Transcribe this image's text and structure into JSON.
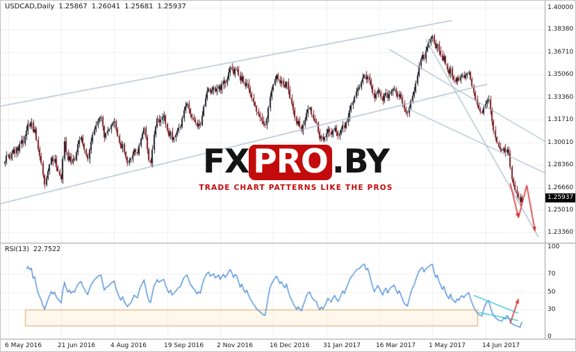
{
  "header": {
    "symbol": "USDCAD,Daily",
    "open": "1.25867",
    "high": "1.26041",
    "low": "1.25681",
    "close": "1.25937"
  },
  "watermark": {
    "fx": "FX",
    "pro": "PRO",
    "dot_by": ".BY",
    "tagline": "TRADE CHART PATTERNS LIKE THE PROS",
    "brand_red": "#c40b0b"
  },
  "colors": {
    "background": "#ffffff",
    "grid": "#d2d2d2",
    "separator": "#9b9b9b",
    "bull_candle": "#1f1f2a",
    "bear_candle": "#7b1d22",
    "trendline": "#a4bac9",
    "rsi_line": "#3e86d8",
    "forecast_red": "#e03030",
    "wedge_cyan": "#2ac0d4",
    "box_border": "#e0a85c",
    "box_fill": "rgba(252,238,213,0.45)",
    "scale_text": "#1a1a1a",
    "price_tag_bg": "#000000",
    "price_tag_text": "#ffffff"
  },
  "chart_data": {
    "type": "candlestick",
    "title": "USDCAD Daily candlestick chart with RSI(13) indicator and trend channel annotations",
    "symbol": "USDCAD",
    "timeframe": "Daily",
    "last_ohlc": {
      "open": 1.25867,
      "high": 1.26041,
      "low": 1.25681,
      "close": 1.25937
    },
    "current_price_label": "1.25937",
    "y_axis": {
      "tick_labels": [
        "1.40000",
        "1.38380",
        "1.36710",
        "1.35060",
        "1.33360",
        "1.31710",
        "1.30010",
        "1.28360",
        "1.26660",
        "1.25010",
        "1.23360"
      ],
      "tick_values": [
        1.4,
        1.3838,
        1.3671,
        1.3506,
        1.3336,
        1.3171,
        1.3001,
        1.2836,
        1.2666,
        1.2501,
        1.2336
      ],
      "range": [
        1.2264,
        1.4052
      ]
    },
    "x_axis": {
      "tick_labels": [
        "6 May 2016",
        "21 Jun 2016",
        "4 Aug 2016",
        "19 Sep 2016",
        "2 Nov 2016",
        "16 Dec 2016",
        "31 Jan 2017",
        "16 Mar 2017",
        "1 May 2017",
        "14 Jun 2017"
      ],
      "tick_day_index": [
        2,
        34,
        66,
        98,
        130,
        162,
        194,
        226,
        258,
        290
      ]
    },
    "closes": [
      1.286,
      1.2905,
      1.291,
      1.288,
      1.2925,
      1.295,
      1.292,
      1.2965,
      1.294,
      1.299,
      1.302,
      1.2995,
      1.305,
      1.309,
      1.314,
      1.312,
      1.315,
      1.308,
      1.31,
      1.302,
      1.295,
      1.29,
      1.285,
      1.276,
      1.269,
      1.274,
      1.279,
      1.284,
      1.289,
      1.286,
      1.288,
      1.282,
      1.279,
      1.276,
      1.273,
      1.288,
      1.301,
      1.293,
      1.287,
      1.29,
      1.285,
      1.288,
      1.287,
      1.293,
      1.299,
      1.302,
      1.304,
      1.299,
      1.295,
      1.291,
      1.288,
      1.295,
      1.301,
      1.306,
      1.31,
      1.313,
      1.316,
      1.318,
      1.319,
      1.312,
      1.304,
      1.307,
      1.309,
      1.31,
      1.313,
      1.3145,
      1.316,
      1.31,
      1.305,
      1.3,
      1.296,
      1.299,
      1.293,
      1.289,
      1.285,
      1.287,
      1.288,
      1.291,
      1.295,
      1.293,
      1.292,
      1.298,
      1.303,
      1.307,
      1.311,
      1.304,
      1.295,
      1.287,
      1.285,
      1.295,
      1.306,
      1.312,
      1.318,
      1.315,
      1.317,
      1.319,
      1.32,
      1.314,
      1.309,
      1.305,
      1.308,
      1.302,
      1.304,
      1.306,
      1.309,
      1.311,
      1.312,
      1.318,
      1.324,
      1.327,
      1.329,
      1.325,
      1.321,
      1.319,
      1.317,
      1.315,
      1.312,
      1.314,
      1.313,
      1.32,
      1.327,
      1.333,
      1.338,
      1.34,
      1.337,
      1.339,
      1.341,
      1.338,
      1.34,
      1.342,
      1.339,
      1.343,
      1.346,
      1.344,
      1.347,
      1.352,
      1.356,
      1.354,
      1.351,
      1.355,
      1.354,
      1.35,
      1.346,
      1.349,
      1.345,
      1.342,
      1.344,
      1.34,
      1.336,
      1.333,
      1.33,
      1.327,
      1.323,
      1.321,
      1.319,
      1.316,
      1.314,
      1.313,
      1.318,
      1.326,
      1.334,
      1.339,
      1.343,
      1.347,
      1.35,
      1.347,
      1.344,
      1.346,
      1.343,
      1.341,
      1.345,
      1.339,
      1.333,
      1.329,
      1.324,
      1.319,
      1.314,
      1.316,
      1.312,
      1.309,
      1.313,
      1.317,
      1.322,
      1.325,
      1.326,
      1.321,
      1.318,
      1.316,
      1.315,
      1.308,
      1.303,
      1.305,
      1.302,
      1.304,
      1.307,
      1.31,
      1.308,
      1.306,
      1.309,
      1.311,
      1.308,
      1.305,
      1.307,
      1.31,
      1.313,
      1.311,
      1.315,
      1.319,
      1.324,
      1.328,
      1.33,
      1.334,
      1.338,
      1.34,
      1.341,
      1.345,
      1.348,
      1.35,
      1.347,
      1.349,
      1.346,
      1.342,
      1.337,
      1.333,
      1.336,
      1.339,
      1.337,
      1.334,
      1.331,
      1.335,
      1.337,
      1.333,
      1.336,
      1.338,
      1.339,
      1.34,
      1.337,
      1.334,
      1.336,
      1.333,
      1.329,
      1.325,
      1.323,
      1.322,
      1.326,
      1.331,
      1.335,
      1.338,
      1.344,
      1.35,
      1.357,
      1.362,
      1.365,
      1.362,
      1.368,
      1.371,
      1.374,
      1.377,
      1.379,
      1.374,
      1.37,
      1.373,
      1.368,
      1.365,
      1.361,
      1.364,
      1.358,
      1.354,
      1.351,
      1.355,
      1.349,
      1.347,
      1.345,
      1.348,
      1.346,
      1.349,
      1.35,
      1.348,
      1.35,
      1.351,
      1.352,
      1.347,
      1.342,
      1.337,
      1.332,
      1.328,
      1.325,
      1.323,
      1.322,
      1.326,
      1.329,
      1.331,
      1.332,
      1.324,
      1.316,
      1.309,
      1.304,
      1.3,
      1.297,
      1.295,
      1.294,
      1.296,
      1.293,
      1.295,
      1.292,
      1.282,
      1.273,
      1.269,
      1.265,
      1.262,
      1.26,
      1.256,
      1.2594
    ],
    "rsi": {
      "label": "RSI(13)",
      "value": "22.7522",
      "period": 13,
      "levels": [
        "100",
        "70",
        "50",
        "30",
        "0"
      ],
      "level_values": [
        100,
        70,
        50,
        30,
        0
      ],
      "dotted_levels": [
        70,
        50,
        30
      ],
      "ylim": [
        0,
        100
      ]
    },
    "annotations": {
      "trendlines": [
        {
          "from_day": -3,
          "from_price": 1.327,
          "to_day": 270,
          "to_price": 1.3905
        },
        {
          "from_day": -3,
          "from_price": 1.2548,
          "to_day": 291,
          "to_price": 1.3433
        },
        {
          "from_day": 254,
          "from_price": 1.3768,
          "to_day": 322,
          "to_price": 1.2301
        },
        {
          "from_day": 232,
          "from_price": 1.3691,
          "to_day": 348,
          "to_price": 1.285
        },
        {
          "from_day": 243,
          "from_price": 1.3253,
          "to_day": 348,
          "to_price": 1.265
        }
      ],
      "forecast_zigzag": {
        "days": [
          305,
          310,
          315,
          320
        ],
        "prices": [
          1.27,
          1.2445,
          1.2685,
          1.2345
        ],
        "arrow_segments": [
          0,
          2
        ]
      },
      "rsi_wedge": [
        {
          "from_day": 283,
          "from_rsi": 46.0,
          "to_day": 310,
          "to_rsi": 26.0
        },
        {
          "from_day": 286,
          "from_rsi": 27.0,
          "to_day": 310,
          "to_rsi": 18.0
        }
      ],
      "rsi_arrow": {
        "from_day": 305,
        "from_rsi": 15.0,
        "to_day": 310,
        "to_rsi": 42.0
      },
      "rsi_box": {
        "from_day": 12,
        "to_day": 285,
        "from_rsi": 30.0,
        "to_rsi": 12.0
      }
    }
  }
}
